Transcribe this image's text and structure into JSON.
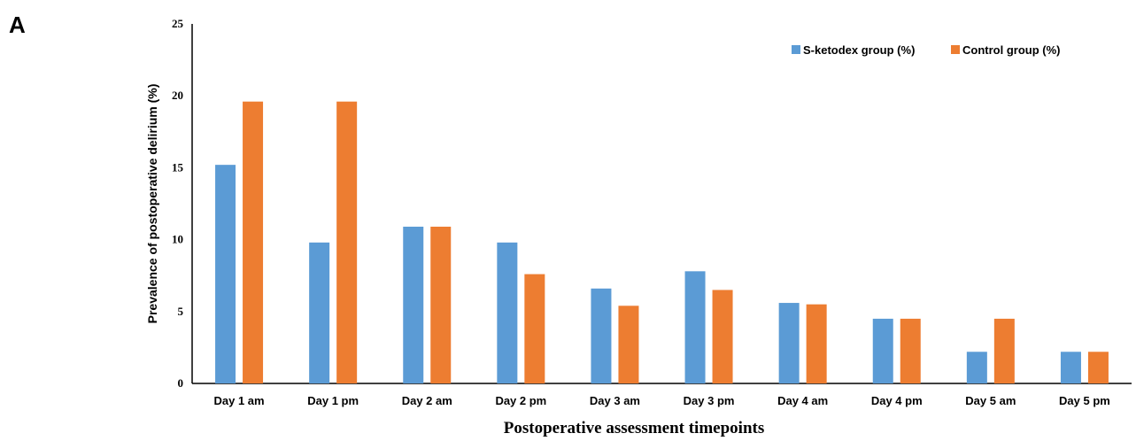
{
  "panel_label": "A",
  "chart_data": {
    "type": "bar",
    "categories": [
      "Day 1 am",
      "Day 1 pm",
      "Day 2 am",
      "Day 2 pm",
      "Day 3 am",
      "Day 3 pm",
      "Day 4 am",
      "Day 4 pm",
      "Day 5 am",
      "Day 5 pm"
    ],
    "series": [
      {
        "name": "S-ketodex group (%)",
        "color": "#5b9bd5",
        "values": [
          15.2,
          9.8,
          10.9,
          9.8,
          6.6,
          7.8,
          5.6,
          4.5,
          2.2,
          2.2
        ]
      },
      {
        "name": "Control group (%)",
        "color": "#ed7d31",
        "values": [
          19.6,
          19.6,
          10.9,
          7.6,
          5.4,
          6.5,
          5.5,
          4.5,
          4.5,
          2.2
        ]
      }
    ],
    "xlabel": "Postoperative assessment timepoints",
    "ylabel": "Prevalence of postoperative delirium (%)",
    "ylim": [
      0,
      25
    ],
    "yticks": [
      "0",
      "5",
      "10",
      "15",
      "20",
      "25"
    ],
    "grid": false,
    "legend_position": "top-right"
  }
}
